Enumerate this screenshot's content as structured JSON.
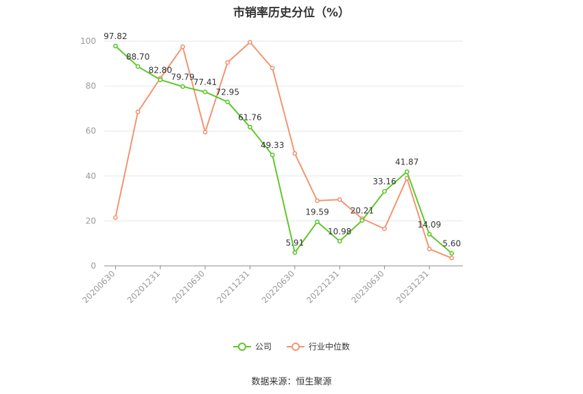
{
  "chart_data": {
    "type": "line",
    "title": "市销率历史分位（%）",
    "x": [
      "20200630",
      "20200930",
      "20201231",
      "20210331",
      "20210630",
      "20210930",
      "20211231",
      "20220331",
      "20220630",
      "20220930",
      "20221231",
      "20230331",
      "20230630",
      "20230930",
      "20231231",
      "20240331"
    ],
    "tick_labels": [
      "20200630",
      "20201231",
      "20210630",
      "20211231",
      "20220630",
      "20221231",
      "20230630",
      "20231231"
    ],
    "y_ticks": [
      0,
      20,
      40,
      60,
      80,
      100
    ],
    "ylim": [
      0,
      100
    ],
    "grid": true,
    "legend_position": "bottom",
    "series": [
      {
        "name": "公司",
        "color": "#5cc72a",
        "values": [
          97.82,
          88.7,
          82.8,
          79.79,
          77.41,
          72.95,
          61.76,
          49.33,
          5.91,
          19.59,
          10.98,
          20.21,
          33.16,
          41.87,
          14.09,
          5.6
        ],
        "labels": [
          "97.82",
          "88.70",
          "82.80",
          "79.79",
          "77.41",
          "72.95",
          "61.76",
          "49.33",
          "5.91",
          "19.59",
          "10.98",
          "20.21",
          "33.16",
          "41.87",
          "14.09",
          "5.60"
        ]
      },
      {
        "name": "行业中位数",
        "color": "#f29370",
        "values": [
          21.5,
          68.5,
          83.5,
          97.5,
          59.5,
          90.5,
          99.5,
          88.0,
          50.0,
          29.0,
          29.5,
          21.0,
          16.5,
          39.0,
          7.5,
          3.5
        ]
      }
    ]
  },
  "source_text": "数据来源：恒生聚源"
}
